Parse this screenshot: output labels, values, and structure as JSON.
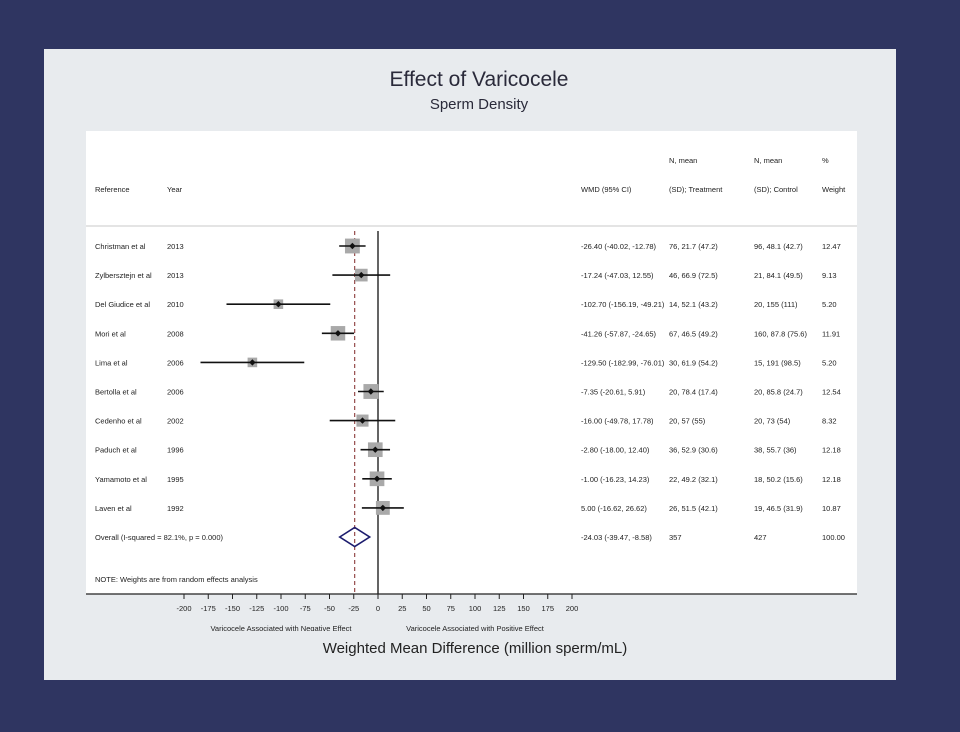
{
  "chart_data": {
    "type": "forest",
    "title": "Effect of Varicocele",
    "subtitle": "Sperm Density",
    "xlabel": "Weighted Mean Difference (million sperm/mL)",
    "xlim": [
      -200,
      200
    ],
    "xticks": [
      "-200",
      "-175",
      "-150",
      "-125",
      "-100",
      "-75",
      "-50",
      "-25",
      "0",
      "25",
      "50",
      "75",
      "100",
      "125",
      "150",
      "175",
      "200"
    ],
    "direction_labels": {
      "negative": "Varicocele Associated with Negative Effect",
      "positive": "Varicocele Associated with Positive Effect"
    },
    "columns": {
      "reference": "Reference",
      "year": "Year",
      "wmd": "WMD (95% CI)",
      "treatment_top": "N, mean",
      "treatment_bottom": "(SD); Treatment",
      "control_top": "N, mean",
      "control_bottom": "(SD); Control",
      "weight_top": "%",
      "weight_bottom": "Weight"
    },
    "studies": [
      {
        "reference": "Christman et al",
        "year": "2013",
        "est": -26.4,
        "lo": -40.02,
        "hi": -12.78,
        "wmd_text": "-26.40 (-40.02, -12.78)",
        "treatment": "76, 21.7 (47.2)",
        "control": "96, 48.1 (42.7)",
        "weight": 12.47,
        "weight_text": "12.47"
      },
      {
        "reference": "Zylbersztejn et al",
        "year": "2013",
        "est": -17.24,
        "lo": -47.03,
        "hi": 12.55,
        "wmd_text": "-17.24 (-47.03, 12.55)",
        "treatment": "46, 66.9 (72.5)",
        "control": "21, 84.1 (49.5)",
        "weight": 9.13,
        "weight_text": "9.13"
      },
      {
        "reference": "Del Giudice et al",
        "year": "2010",
        "est": -102.7,
        "lo": -156.19,
        "hi": -49.21,
        "wmd_text": "-102.70 (-156.19, -49.21)",
        "treatment": "14, 52.1 (43.2)",
        "control": "20, 155 (111)",
        "weight": 5.2,
        "weight_text": "5.20"
      },
      {
        "reference": "Mori et al",
        "year": "2008",
        "est": -41.26,
        "lo": -57.87,
        "hi": -24.65,
        "wmd_text": "-41.26 (-57.87, -24.65)",
        "treatment": "67, 46.5 (49.2)",
        "control": "160, 87.8 (75.6)",
        "weight": 11.91,
        "weight_text": "11.91"
      },
      {
        "reference": "Lima et al",
        "year": "2006",
        "est": -129.5,
        "lo": -182.99,
        "hi": -76.01,
        "wmd_text": "-129.50 (-182.99, -76.01)",
        "treatment": "30, 61.9 (54.2)",
        "control": "15, 191 (98.5)",
        "weight": 5.2,
        "weight_text": "5.20"
      },
      {
        "reference": "Bertolla et al",
        "year": "2006",
        "est": -7.35,
        "lo": -20.61,
        "hi": 5.91,
        "wmd_text": "-7.35 (-20.61, 5.91)",
        "treatment": "20, 78.4 (17.4)",
        "control": "20, 85.8 (24.7)",
        "weight": 12.54,
        "weight_text": "12.54"
      },
      {
        "reference": "Cedenho et al",
        "year": "2002",
        "est": -16.0,
        "lo": -49.78,
        "hi": 17.78,
        "wmd_text": "-16.00 (-49.78, 17.78)",
        "treatment": "20, 57 (55)",
        "control": "20, 73 (54)",
        "weight": 8.32,
        "weight_text": "8.32"
      },
      {
        "reference": "Paduch et al",
        "year": "1996",
        "est": -2.8,
        "lo": -18.0,
        "hi": 12.4,
        "wmd_text": "-2.80 (-18.00, 12.40)",
        "treatment": "36, 52.9 (30.6)",
        "control": "38, 55.7 (36)",
        "weight": 12.18,
        "weight_text": "12.18"
      },
      {
        "reference": "Yamamoto et al",
        "year": "1995",
        "est": -1.0,
        "lo": -16.23,
        "hi": 14.23,
        "wmd_text": "-1.00 (-16.23, 14.23)",
        "treatment": "22, 49.2 (32.1)",
        "control": "18, 50.2 (15.6)",
        "weight": 12.18,
        "weight_text": "12.18"
      },
      {
        "reference": "Laven et al",
        "year": "1992",
        "est": 5.0,
        "lo": -16.62,
        "hi": 26.62,
        "wmd_text": "5.00 (-16.62, 26.62)",
        "treatment": "26, 51.5 (42.1)",
        "control": "19, 46.5 (31.9)",
        "weight": 10.87,
        "weight_text": "10.87"
      }
    ],
    "overall": {
      "label": "Overall  (I-squared = 82.1%, p = 0.000)",
      "est": -24.03,
      "lo": -39.47,
      "hi": -8.58,
      "wmd_text": "-24.03 (-39.47, -8.58)",
      "treatment": "357",
      "control": "427",
      "weight_text": "100.00"
    },
    "note": "NOTE: Weights are from random effects analysis"
  },
  "colors": {
    "background": "#2f3561",
    "frame": "#e8ebee",
    "panel": "#ffffff",
    "box": "#a9a9a9",
    "diamond": "#1c1c6e",
    "overall_line": "#8b3a3a"
  }
}
